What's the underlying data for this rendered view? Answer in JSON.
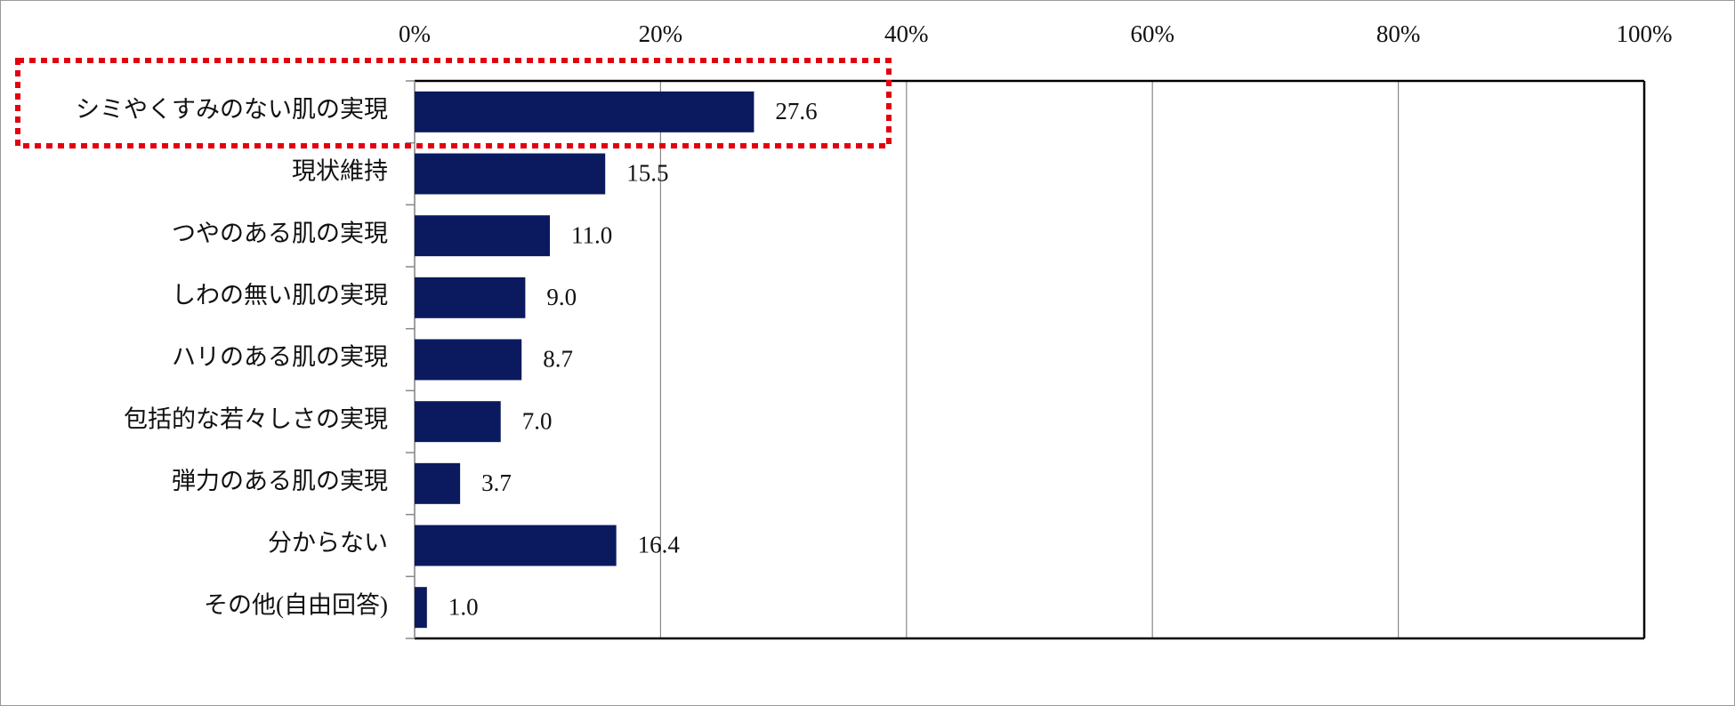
{
  "chart_data": {
    "type": "hbar",
    "categories": [
      "シミやくすみのない肌の実現",
      "現状維持",
      "つやのある肌の実現",
      "しわの無い肌の実現",
      "ハリのある肌の実現",
      "包括的な若々しさの実現",
      "弾力のある肌の実現",
      "分からない",
      "その他(自由回答)"
    ],
    "values": [
      27.6,
      15.5,
      11.0,
      9.0,
      8.7,
      7.0,
      3.7,
      16.4,
      1.0
    ],
    "value_labels": [
      "27.6",
      "15.5",
      "11.0",
      "9.0",
      "8.7",
      "7.0",
      "3.7",
      "16.4",
      "1.0"
    ],
    "color": "#0b1a5e",
    "xlim": [
      0,
      100
    ],
    "xticks": [
      {
        "value": 0,
        "label": "0%"
      },
      {
        "value": 20,
        "label": "20%"
      },
      {
        "value": 40,
        "label": "40%"
      },
      {
        "value": 60,
        "label": "60%"
      },
      {
        "value": 80,
        "label": "80%"
      },
      {
        "value": 100,
        "label": "100%"
      }
    ],
    "grid": true
  }
}
